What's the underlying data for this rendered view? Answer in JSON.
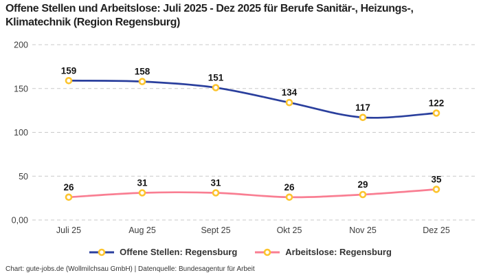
{
  "title": "Offene Stellen und Arbeitslose: Juli 2025 - Dez 2025 für Berufe Sanitär-, Heizungs-, Klimatechnik (Region Regensburg)",
  "footer": "Chart: gute-jobs.de (Wollmilchsau GmbH) | Datenquelle: Bundesagentur für Arbeit",
  "legend": {
    "items": [
      {
        "label": "Offene Stellen: Regensburg",
        "color": "#2a3f9d"
      },
      {
        "label": "Arbeitslose: Regensburg",
        "color": "#f97e92"
      }
    ]
  },
  "chart_data": {
    "type": "line",
    "title": "Offene Stellen und Arbeitslose: Juli 2025 - Dez 2025 für Berufe Sanitär-, Heizungs-, Klimatechnik (Region Regensburg)",
    "categories": [
      "Juli 25",
      "Aug 25",
      "Sept 25",
      "Okt 25",
      "Nov 25",
      "Dez 25"
    ],
    "series": [
      {
        "name": "Offene Stellen: Regensburg",
        "color": "#2a3f9d",
        "values": [
          159,
          158,
          151,
          134,
          117,
          122
        ]
      },
      {
        "name": "Arbeitslose: Regensburg",
        "color": "#f97e92",
        "values": [
          26,
          31,
          31,
          26,
          29,
          35
        ]
      }
    ],
    "y_ticks": [
      {
        "value": 200,
        "label": "200"
      },
      {
        "value": 150,
        "label": "150"
      },
      {
        "value": 100,
        "label": "100"
      },
      {
        "value": 50,
        "label": "50"
      },
      {
        "value": 0,
        "label": "0,00"
      }
    ],
    "xlabel": "",
    "ylabel": "",
    "ylim": [
      0,
      200
    ],
    "grid": "horizontal-dashed",
    "gridline_color": "#c9c9c9",
    "marker": {
      "stroke": "#fcc42e",
      "fill": "#ffffff"
    },
    "legend_position": "bottom",
    "background": "#ffffff"
  }
}
